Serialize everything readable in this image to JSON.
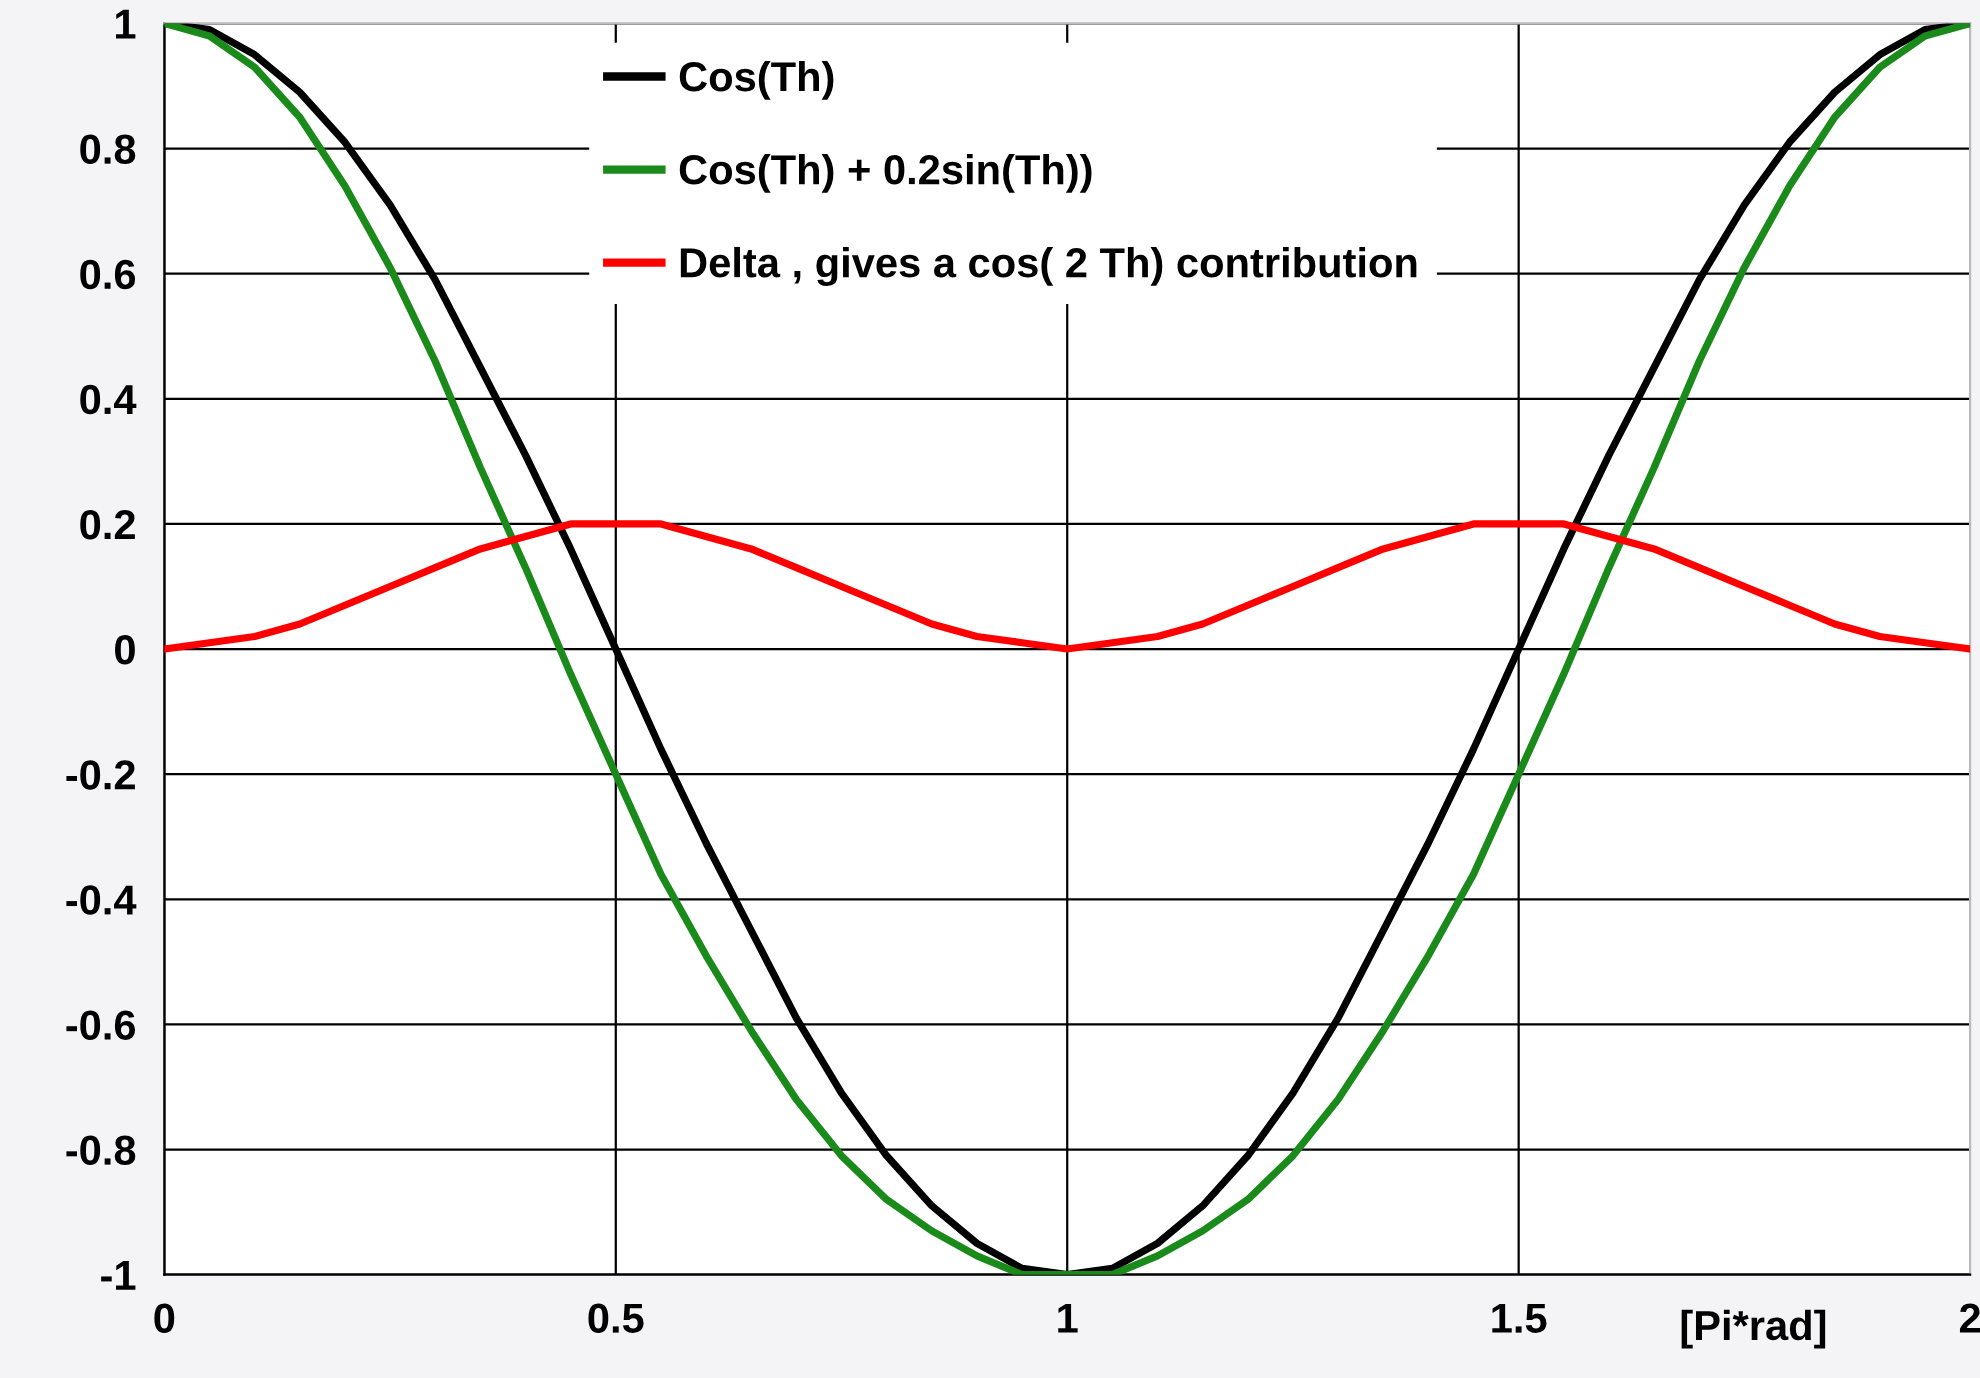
{
  "chart_data": {
    "type": "line",
    "xlabel": "[Pi*rad]",
    "x": [
      0,
      0.05,
      0.1,
      0.15,
      0.2,
      0.25,
      0.3,
      0.35,
      0.4,
      0.45,
      0.5,
      0.55,
      0.6,
      0.65,
      0.7,
      0.75,
      0.8,
      0.85,
      0.9,
      0.95,
      1,
      1.05,
      1.1,
      1.15,
      1.2,
      1.25,
      1.3,
      1.35,
      1.4,
      1.45,
      1.5,
      1.55,
      1.6,
      1.65,
      1.7,
      1.75,
      1.8,
      1.85,
      1.9,
      1.95,
      2
    ],
    "series": [
      {
        "name": "Cos(Th)",
        "color": "#000000",
        "values": [
          1,
          0.99,
          0.95,
          0.89,
          0.81,
          0.71,
          0.59,
          0.45,
          0.31,
          0.16,
          0,
          -0.16,
          -0.31,
          -0.45,
          -0.59,
          -0.71,
          -0.81,
          -0.89,
          -0.95,
          -0.99,
          -1,
          -0.99,
          -0.95,
          -0.89,
          -0.81,
          -0.71,
          -0.59,
          -0.45,
          -0.31,
          -0.16,
          0,
          0.16,
          0.31,
          0.45,
          0.59,
          0.71,
          0.81,
          0.89,
          0.95,
          0.99,
          1
        ]
      },
      {
        "name": "Cos(Th) + 0.2sin(Th))",
        "color": "#1a8a1a",
        "values": [
          1,
          0.98,
          0.93,
          0.85,
          0.74,
          0.61,
          0.46,
          0.29,
          0.13,
          -0.04,
          -0.2,
          -0.36,
          -0.49,
          -0.61,
          -0.72,
          -0.81,
          -0.88,
          -0.93,
          -0.97,
          -1,
          -1,
          -1,
          -0.97,
          -0.93,
          -0.88,
          -0.81,
          -0.72,
          -0.61,
          -0.49,
          -0.36,
          -0.2,
          -0.04,
          0.13,
          0.29,
          0.46,
          0.61,
          0.74,
          0.85,
          0.93,
          0.98,
          1
        ]
      },
      {
        "name": "Delta , gives a cos( 2 Th) contribution",
        "color": "#ff0000",
        "values": [
          0,
          0.01,
          0.02,
          0.04,
          0.07,
          0.1,
          0.13,
          0.16,
          0.18,
          0.2,
          0.2,
          0.2,
          0.18,
          0.16,
          0.13,
          0.1,
          0.07,
          0.04,
          0.02,
          0.01,
          0,
          0.01,
          0.02,
          0.04,
          0.07,
          0.1,
          0.13,
          0.16,
          0.18,
          0.2,
          0.2,
          0.2,
          0.18,
          0.16,
          0.13,
          0.1,
          0.07,
          0.04,
          0.02,
          0.01,
          0
        ]
      }
    ],
    "xlim": [
      0,
      2
    ],
    "ylim": [
      -1,
      1
    ],
    "xticks": [
      0,
      0.5,
      1,
      1.5,
      2
    ],
    "yticks": [
      -1,
      -0.8,
      -0.6,
      -0.4,
      -0.2,
      0,
      0.2,
      0.4,
      0.6,
      0.8,
      1
    ],
    "grid": true,
    "legend": "top",
    "marker": "none",
    "line_style": "solid"
  }
}
